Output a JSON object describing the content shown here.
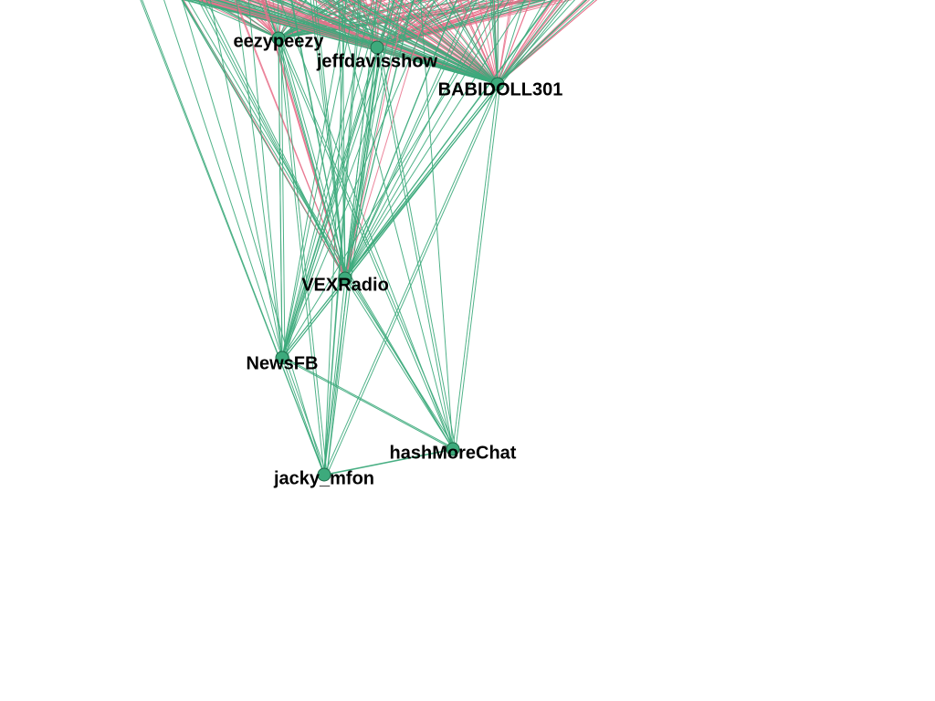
{
  "nodes": [
    {
      "label": "eezypeezy"
    },
    {
      "label": "jeffdavisshow"
    },
    {
      "label": "BABIDOLL301"
    },
    {
      "label": "VEXRadio"
    },
    {
      "label": "NewsFB"
    },
    {
      "label": "hashMoreChat"
    },
    {
      "label": "jacky_mfon"
    }
  ]
}
